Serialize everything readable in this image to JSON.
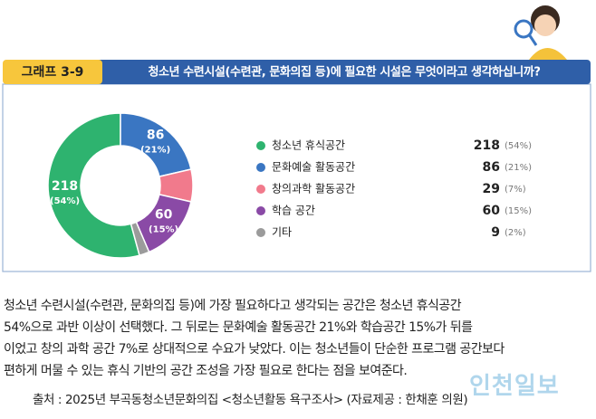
{
  "chart_data": {
    "type": "donut",
    "badge": "그래프 3-9",
    "title": "청소년 수련시설(수련관, 문화의집 등)에 필요한 시설은 무엇이라고 생각하십니까?",
    "categories": [
      "청소년 휴식공간",
      "문화예술 활동공간",
      "창의과학 활동공간",
      "학습 공간",
      "기타"
    ],
    "values": [
      218,
      86,
      29,
      60,
      9
    ],
    "percent_labels": [
      "(54%)",
      "(21%)",
      "(7%)",
      "(15%)",
      "(2%)"
    ],
    "colors": [
      "#2eb36f",
      "#3a76c2",
      "#f17a8c",
      "#8a4aa6",
      "#9b9b9b"
    ],
    "inner_labels": [
      true,
      true,
      false,
      true,
      false
    ]
  },
  "body_text": [
    "청소년 수련시설(수련관, 문화의집 등)에 가장 필요하다고 생각되는 공간은 청소년 휴식공간",
    "54%으로 과반 이상이 선택했다. 그 뒤로는 문화예술 활동공간 21%와 학습공간 15%가 뒤를",
    "이었고 창의 과학 공간 7%로 상대적으로 수요가 낮았다. 이는 청소년들이 단순한 프로그램 공간보다",
    "편하게 머물 수 있는 휴식 기반의 공간 조성을 가장 필요로 한다는 점을 보여준다."
  ],
  "source": "출처 : 2025년 부곡동청소년문화의집 <청소년활동 욕구조사> (자료제공 : 한채훈 의원)",
  "watermark": "인천일보"
}
